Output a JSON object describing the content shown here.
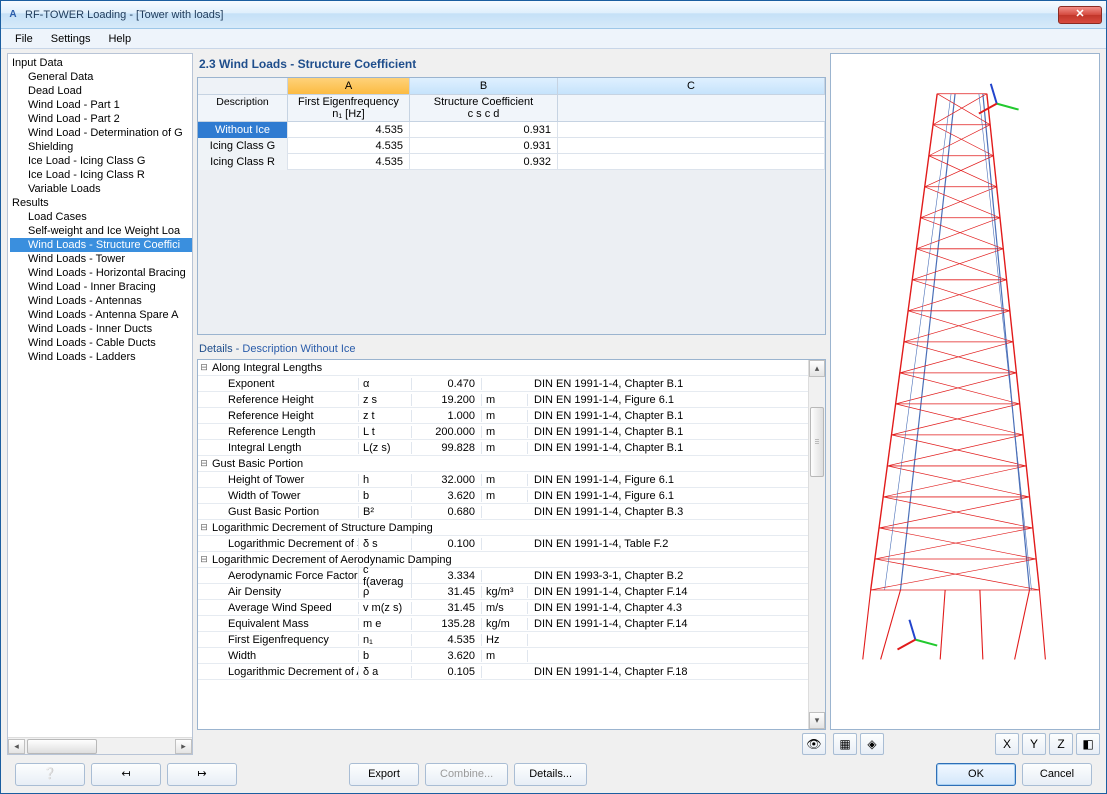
{
  "window": {
    "title": "RF-TOWER Loading - [Tower with loads]"
  },
  "menu": {
    "file": "File",
    "settings": "Settings",
    "help": "Help"
  },
  "tree": {
    "input_data": "Input Data",
    "input_items": [
      "General Data",
      "Dead Load",
      "Wind Load - Part 1",
      "Wind Load - Part 2",
      "Wind Load - Determination of G",
      "Shielding",
      "Ice Load - Icing Class G",
      "Ice Load - Icing Class R",
      "Variable Loads"
    ],
    "results": "Results",
    "results_items": [
      "Load Cases",
      "Self-weight and Ice Weight Loa",
      "Wind Loads - Structure Coeffici",
      "Wind Loads - Tower",
      "Wind Loads - Horizontal Bracing",
      "Wind Load - Inner Bracing",
      "Wind Loads - Antennas",
      "Wind Loads - Antenna Spare A",
      "Wind Loads - Inner Ducts",
      "Wind Loads - Cable Ducts",
      "Wind Loads - Ladders"
    ],
    "selected_index": 2
  },
  "panel": {
    "title": "2.3 Wind Loads - Structure Coefficient"
  },
  "grid": {
    "letters": [
      "A",
      "B",
      "C"
    ],
    "active_letter": 0,
    "head_desc": "Description",
    "sub_a": "First Eigenfrequency",
    "sub_a2": "n₁ [Hz]",
    "sub_b": "Structure Coefficient",
    "sub_b2": "c s c d",
    "rows": [
      {
        "desc": "Without Ice",
        "a": "4.535",
        "b": "0.931"
      },
      {
        "desc": "Icing Class G",
        "a": "4.535",
        "b": "0.931"
      },
      {
        "desc": "Icing Class R",
        "a": "4.535",
        "b": "0.932"
      }
    ],
    "selected_row": 0
  },
  "details": {
    "title_prefix": "Details  -  ",
    "title_dyn": "Description Without Ice",
    "sections": [
      {
        "name": "Along Integral Lengths",
        "rows": [
          {
            "label": "Exponent",
            "sym": "α",
            "val": "0.470",
            "unit": "",
            "ref": "DIN EN 1991-1-4, Chapter B.1"
          },
          {
            "label": "Reference Height",
            "sym": "z s",
            "val": "19.200",
            "unit": "m",
            "ref": "DIN EN 1991-1-4, Figure 6.1"
          },
          {
            "label": "Reference Height",
            "sym": "z t",
            "val": "1.000",
            "unit": "m",
            "ref": "DIN EN 1991-1-4, Chapter B.1"
          },
          {
            "label": "Reference Length",
            "sym": "L t",
            "val": "200.000",
            "unit": "m",
            "ref": "DIN EN 1991-1-4, Chapter B.1"
          },
          {
            "label": "Integral Length",
            "sym": "L(z s)",
            "val": "99.828",
            "unit": "m",
            "ref": "DIN EN 1991-1-4, Chapter B.1"
          }
        ]
      },
      {
        "name": "Gust Basic Portion",
        "rows": [
          {
            "label": "Height of Tower",
            "sym": "h",
            "val": "32.000",
            "unit": "m",
            "ref": "DIN EN 1991-1-4, Figure 6.1"
          },
          {
            "label": "Width of Tower",
            "sym": "b",
            "val": "3.620",
            "unit": "m",
            "ref": "DIN EN 1991-1-4, Figure 6.1"
          },
          {
            "label": "Gust Basic Portion",
            "sym": "B²",
            "val": "0.680",
            "unit": "",
            "ref": "DIN EN 1991-1-4, Chapter B.3"
          }
        ]
      },
      {
        "name": "Logarithmic Decrement of Structure Damping",
        "rows": [
          {
            "label": "Logarithmic Decrement of S",
            "sym": "δ s",
            "val": "0.100",
            "unit": "",
            "ref": "DIN EN 1991-1-4, Table F.2"
          }
        ]
      },
      {
        "name": "Logarithmic Decrement of Aerodynamic Damping",
        "rows": [
          {
            "label": "Aerodynamic Force Factor",
            "sym": "c f(averag",
            "val": "3.334",
            "unit": "",
            "ref": "DIN EN 1993-3-1, Chapter B.2"
          },
          {
            "label": "Air Density",
            "sym": "ρ",
            "val": "31.45",
            "unit": "kg/m³",
            "ref": "DIN EN 1991-1-4, Chapter F.14"
          },
          {
            "label": "Average Wind Speed",
            "sym": "v m(z s)",
            "val": "31.45",
            "unit": "m/s",
            "ref": "DIN EN 1991-1-4, Chapter 4.3"
          },
          {
            "label": "Equivalent Mass",
            "sym": "m e",
            "val": "135.28",
            "unit": "kg/m",
            "ref": "DIN EN 1991-1-4, Chapter F.14"
          },
          {
            "label": "First Eigenfrequency",
            "sym": "n₁",
            "val": "4.535",
            "unit": "Hz",
            "ref": ""
          },
          {
            "label": "Width",
            "sym": "b",
            "val": "3.620",
            "unit": "m",
            "ref": ""
          },
          {
            "label": "Logarithmic Decrement of A",
            "sym": "δ a",
            "val": "0.105",
            "unit": "",
            "ref": "DIN EN 1991-1-4, Chapter F.18"
          }
        ]
      }
    ]
  },
  "buttons": {
    "export": "Export",
    "combine": "Combine...",
    "details": "Details...",
    "ok": "OK",
    "cancel": "Cancel"
  },
  "viewer": {
    "tower_color": "#e11b1b",
    "outline_color": "#4a6fb8",
    "axis_x": "#22c92e",
    "axis_y": "#e11b1b",
    "axis_z": "#2244cc",
    "bg": "#ffffff"
  },
  "colors": {
    "accent": "#2f7bd1"
  }
}
